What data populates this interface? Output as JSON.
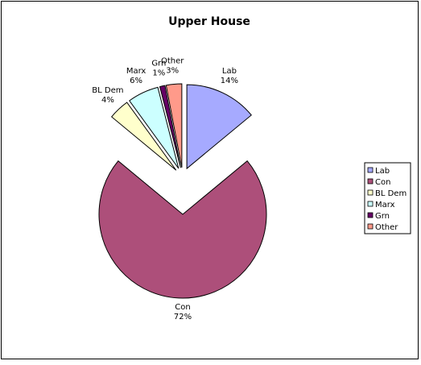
{
  "chart_data": {
    "type": "pie",
    "title": "Upper House",
    "categories": [
      "Lab",
      "Con",
      "BL Dem",
      "Marx",
      "Grn",
      "Other"
    ],
    "values": [
      14,
      72,
      4,
      6,
      1,
      3
    ],
    "value_labels": [
      "14%",
      "72%",
      "4%",
      "6%",
      "1%",
      "3%"
    ],
    "colors": [
      "#a6aaff",
      "#ad4f7a",
      "#ffffcc",
      "#ccffff",
      "#660066",
      "#ff9a8a"
    ],
    "legend": "right"
  }
}
